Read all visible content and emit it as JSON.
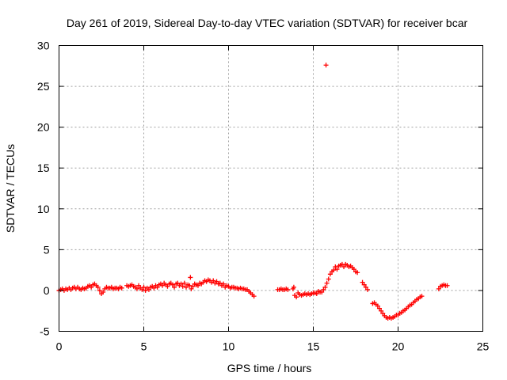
{
  "chart_data": {
    "type": "scatter",
    "title": "Day 261 of 2019, Sidereal Day-to-day VTEC variation (SDTVAR) for receiver bcar",
    "xlabel": "GPS time / hours",
    "ylabel": "SDTVAR / TECUs",
    "xlim": [
      0,
      25
    ],
    "ylim": [
      -5,
      30
    ],
    "xticks": [
      0,
      5,
      10,
      15,
      20,
      25
    ],
    "yticks": [
      -5,
      0,
      5,
      10,
      15,
      20,
      25,
      30
    ],
    "grid": true,
    "marker": "+",
    "color": "#ff0000",
    "series": [
      {
        "name": "SDTVAR",
        "points": [
          [
            0.0,
            0.0
          ],
          [
            0.1,
            0.1
          ],
          [
            0.2,
            0.2
          ],
          [
            0.3,
            0.0
          ],
          [
            0.4,
            0.2
          ],
          [
            0.5,
            0.1
          ],
          [
            0.6,
            0.3
          ],
          [
            0.7,
            0.1
          ],
          [
            0.8,
            0.3
          ],
          [
            0.9,
            0.4
          ],
          [
            1.0,
            0.2
          ],
          [
            1.1,
            0.4
          ],
          [
            1.2,
            0.2
          ],
          [
            1.3,
            0.1
          ],
          [
            1.4,
            0.3
          ],
          [
            1.5,
            0.2
          ],
          [
            1.6,
            0.3
          ],
          [
            1.7,
            0.5
          ],
          [
            1.8,
            0.6
          ],
          [
            1.9,
            0.4
          ],
          [
            2.0,
            0.7
          ],
          [
            2.1,
            0.8
          ],
          [
            2.2,
            0.6
          ],
          [
            2.3,
            0.4
          ],
          [
            2.4,
            0.0
          ],
          [
            2.5,
            -0.4
          ],
          [
            2.6,
            -0.2
          ],
          [
            2.7,
            0.2
          ],
          [
            2.8,
            0.4
          ],
          [
            2.9,
            0.3
          ],
          [
            3.0,
            0.3
          ],
          [
            3.1,
            0.4
          ],
          [
            3.2,
            0.2
          ],
          [
            3.3,
            0.3
          ],
          [
            3.4,
            0.3
          ],
          [
            3.5,
            0.2
          ],
          [
            3.6,
            0.4
          ],
          [
            3.7,
            0.3
          ],
          [
            4.0,
            0.6
          ],
          [
            4.1,
            0.5
          ],
          [
            4.2,
            0.6
          ],
          [
            4.3,
            0.7
          ],
          [
            4.4,
            0.5
          ],
          [
            4.5,
            0.4
          ],
          [
            4.6,
            0.2
          ],
          [
            4.7,
            0.6
          ],
          [
            4.8,
            0.3
          ],
          [
            4.9,
            0.1
          ],
          [
            5.0,
            0.4
          ],
          [
            5.1,
            0.0
          ],
          [
            5.2,
            0.3
          ],
          [
            5.3,
            0.1
          ],
          [
            5.4,
            0.4
          ],
          [
            5.5,
            0.5
          ],
          [
            5.6,
            0.3
          ],
          [
            5.7,
            0.6
          ],
          [
            5.8,
            0.4
          ],
          [
            5.9,
            0.7
          ],
          [
            6.0,
            0.8
          ],
          [
            6.1,
            0.6
          ],
          [
            6.2,
            0.9
          ],
          [
            6.3,
            0.7
          ],
          [
            6.4,
            0.5
          ],
          [
            6.5,
            0.8
          ],
          [
            6.6,
            0.9
          ],
          [
            6.7,
            0.7
          ],
          [
            6.8,
            0.4
          ],
          [
            6.9,
            0.8
          ],
          [
            7.0,
            0.9
          ],
          [
            7.1,
            0.6
          ],
          [
            7.2,
            0.8
          ],
          [
            7.3,
            0.5
          ],
          [
            7.4,
            0.9
          ],
          [
            7.5,
            0.4
          ],
          [
            7.6,
            0.7
          ],
          [
            7.7,
            0.6
          ],
          [
            7.75,
            1.6
          ],
          [
            7.8,
            0.2
          ],
          [
            7.9,
            0.5
          ],
          [
            8.0,
            0.8
          ],
          [
            8.1,
            0.7
          ],
          [
            8.2,
            0.6
          ],
          [
            8.3,
            0.9
          ],
          [
            8.4,
            0.8
          ],
          [
            8.5,
            1.0
          ],
          [
            8.6,
            1.2
          ],
          [
            8.7,
            1.1
          ],
          [
            8.8,
            1.3
          ],
          [
            8.9,
            1.2
          ],
          [
            9.0,
            1.0
          ],
          [
            9.1,
            1.2
          ],
          [
            9.2,
            0.9
          ],
          [
            9.3,
            1.1
          ],
          [
            9.4,
            0.8
          ],
          [
            9.5,
            0.9
          ],
          [
            9.6,
            0.6
          ],
          [
            9.7,
            0.8
          ],
          [
            9.8,
            0.4
          ],
          [
            9.9,
            0.6
          ],
          [
            10.0,
            0.5
          ],
          [
            10.1,
            0.3
          ],
          [
            10.2,
            0.4
          ],
          [
            10.3,
            0.4
          ],
          [
            10.4,
            0.3
          ],
          [
            10.5,
            0.3
          ],
          [
            10.6,
            0.2
          ],
          [
            10.7,
            0.3
          ],
          [
            10.8,
            0.2
          ],
          [
            10.9,
            0.2
          ],
          [
            11.0,
            0.1
          ],
          [
            11.1,
            0.1
          ],
          [
            11.2,
            -0.1
          ],
          [
            11.3,
            -0.3
          ],
          [
            11.4,
            -0.5
          ],
          [
            11.5,
            -0.7
          ],
          [
            12.9,
            0.1
          ],
          [
            13.0,
            0.1
          ],
          [
            13.1,
            0.2
          ],
          [
            13.2,
            0.1
          ],
          [
            13.3,
            0.1
          ],
          [
            13.4,
            0.2
          ],
          [
            13.5,
            0.1
          ],
          [
            13.8,
            0.2
          ],
          [
            13.85,
            0.4
          ],
          [
            13.9,
            -0.6
          ],
          [
            14.0,
            -0.8
          ],
          [
            14.1,
            -0.3
          ],
          [
            14.2,
            -0.5
          ],
          [
            14.3,
            -0.6
          ],
          [
            14.4,
            -0.5
          ],
          [
            14.5,
            -0.4
          ],
          [
            14.6,
            -0.5
          ],
          [
            14.7,
            -0.4
          ],
          [
            14.8,
            -0.5
          ],
          [
            14.9,
            -0.4
          ],
          [
            15.0,
            -0.3
          ],
          [
            15.1,
            -0.3
          ],
          [
            15.2,
            -0.4
          ],
          [
            15.3,
            -0.1
          ],
          [
            15.4,
            -0.2
          ],
          [
            15.5,
            -0.2
          ],
          [
            15.6,
            0.1
          ],
          [
            15.7,
            0.4
          ],
          [
            15.75,
            27.6
          ],
          [
            15.8,
            0.9
          ],
          [
            15.9,
            1.4
          ],
          [
            16.0,
            2.0
          ],
          [
            16.1,
            2.3
          ],
          [
            16.2,
            2.5
          ],
          [
            16.3,
            2.9
          ],
          [
            16.4,
            2.6
          ],
          [
            16.5,
            3.0
          ],
          [
            16.6,
            3.1
          ],
          [
            16.7,
            3.2
          ],
          [
            16.8,
            2.9
          ],
          [
            16.9,
            3.2
          ],
          [
            17.0,
            3.1
          ],
          [
            17.1,
            2.9
          ],
          [
            17.2,
            3.0
          ],
          [
            17.3,
            2.8
          ],
          [
            17.4,
            2.6
          ],
          [
            17.5,
            2.3
          ],
          [
            17.6,
            2.2
          ],
          [
            17.9,
            1.0
          ],
          [
            18.0,
            0.7
          ],
          [
            18.1,
            0.4
          ],
          [
            18.2,
            0.1
          ],
          [
            18.5,
            -1.6
          ],
          [
            18.6,
            -1.5
          ],
          [
            18.7,
            -1.7
          ],
          [
            18.8,
            -1.9
          ],
          [
            18.9,
            -2.2
          ],
          [
            19.0,
            -2.5
          ],
          [
            19.1,
            -2.8
          ],
          [
            19.2,
            -3.1
          ],
          [
            19.3,
            -3.3
          ],
          [
            19.4,
            -3.4
          ],
          [
            19.5,
            -3.3
          ],
          [
            19.6,
            -3.4
          ],
          [
            19.7,
            -3.3
          ],
          [
            19.8,
            -3.2
          ],
          [
            19.9,
            -3.0
          ],
          [
            20.0,
            -3.0
          ],
          [
            20.1,
            -2.8
          ],
          [
            20.2,
            -2.7
          ],
          [
            20.3,
            -2.5
          ],
          [
            20.4,
            -2.4
          ],
          [
            20.5,
            -2.2
          ],
          [
            20.6,
            -2.0
          ],
          [
            20.7,
            -1.8
          ],
          [
            20.8,
            -1.7
          ],
          [
            20.9,
            -1.5
          ],
          [
            21.0,
            -1.3
          ],
          [
            21.1,
            -1.1
          ],
          [
            21.2,
            -1.0
          ],
          [
            21.3,
            -0.8
          ],
          [
            21.4,
            -0.7
          ],
          [
            22.4,
            0.2
          ],
          [
            22.5,
            0.5
          ],
          [
            22.6,
            0.6
          ],
          [
            22.7,
            0.7
          ],
          [
            22.8,
            0.6
          ],
          [
            22.9,
            0.6
          ]
        ]
      }
    ]
  }
}
